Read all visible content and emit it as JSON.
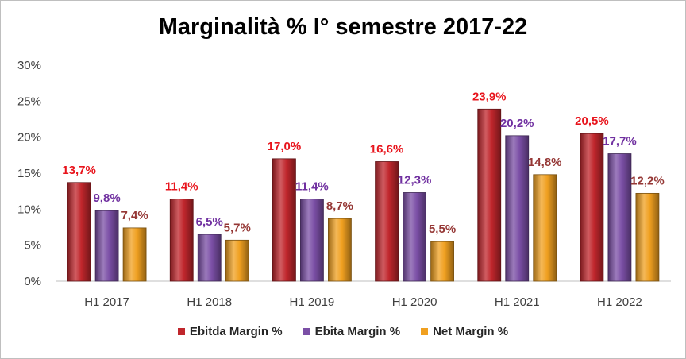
{
  "chart_data": {
    "type": "bar",
    "title": "Marginalità % I° semestre 2017-22",
    "categories": [
      "H1 2017",
      "H1 2018",
      "H1 2019",
      "H1 2020",
      "H1 2021",
      "H1 2022"
    ],
    "series": [
      {
        "name": "Ebitda Margin %",
        "values": [
          13.7,
          11.4,
          17.0,
          16.6,
          23.9,
          20.5
        ],
        "labels": [
          "13,7%",
          "11,4%",
          "17,0%",
          "16,6%",
          "23,9%",
          "20,5%"
        ],
        "color": "#c0262c",
        "label_color": "#e8141c"
      },
      {
        "name": "Ebita Margin %",
        "values": [
          9.8,
          6.5,
          11.4,
          12.3,
          20.2,
          17.7
        ],
        "labels": [
          "9,8%",
          "6,5%",
          "11,4%",
          "12,3%",
          "20,2%",
          "17,7%"
        ],
        "color": "#7b4fa6",
        "label_color": "#7030a0"
      },
      {
        "name": "Net Margin %",
        "values": [
          7.4,
          5.7,
          8.7,
          5.5,
          14.8,
          12.2
        ],
        "labels": [
          "7,4%",
          "5,7%",
          "8,7%",
          "5,5%",
          "14,8%",
          "12,2%"
        ],
        "color": "#f0a020",
        "label_color": "#953735"
      }
    ],
    "yticks": [
      "0%",
      "5%",
      "10%",
      "15%",
      "20%",
      "25%",
      "30%"
    ],
    "ylim": [
      0,
      30
    ],
    "grid": false,
    "legend": "bottom"
  }
}
